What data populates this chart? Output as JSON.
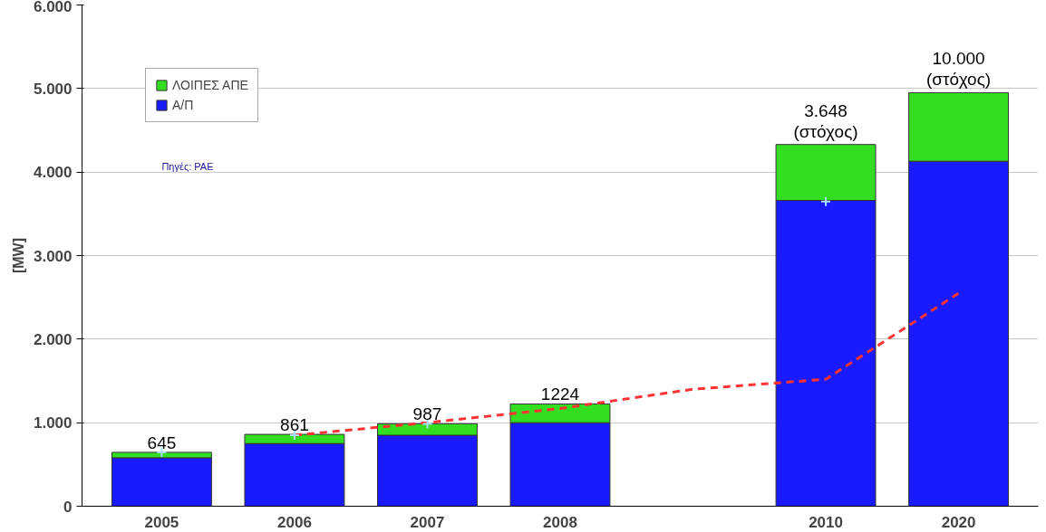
{
  "chart_data": {
    "type": "bar",
    "stacked": true,
    "ylabel": "[MW]",
    "categories": [
      "2005",
      "2006",
      "2007",
      "2008",
      null,
      "2010",
      "2020"
    ],
    "series": [
      {
        "name": "Α/Π",
        "color": "#1a1aff",
        "values": [
          580,
          750,
          850,
          1000,
          null,
          3660,
          4130
        ]
      },
      {
        "name": "ΛΟΙΠΕΣ ΑΠΕ",
        "color": "#33dd22",
        "values": [
          65,
          110,
          137,
          224,
          null,
          670,
          820
        ]
      },
      {
        "type": "line",
        "color": "#ff3333",
        "line_style": "dashed",
        "values": [
          null,
          850,
          1000,
          1170,
          1400,
          1520,
          2550
        ]
      },
      {
        "type": "scatter",
        "marker": "cross",
        "color": "#aaddff",
        "values": [
          645,
          850,
          985,
          null,
          null,
          3648,
          null
        ]
      }
    ],
    "totals": [
      "645",
      "861",
      "987",
      "1224",
      null,
      null,
      null
    ],
    "annotations": [
      {
        "text": "3.648\n(στόχος)",
        "x": "2010",
        "y": 4330
      },
      {
        "text": "10.000\n(στόχος)",
        "x": "2020",
        "y": 4950
      },
      "Πηγές: ΡΑΕ"
    ],
    "ylim": [
      0,
      6000
    ],
    "yticks": [
      {
        "value": 0,
        "label": "0"
      },
      {
        "value": 1000,
        "label": "1.000"
      },
      {
        "value": 2000,
        "label": "2.000"
      },
      {
        "value": 3000,
        "label": "3.000"
      },
      {
        "value": 4000,
        "label": "4.000"
      },
      {
        "value": 5000,
        "label": "5.000"
      },
      {
        "value": 6000,
        "label": "6.000"
      }
    ],
    "grid": "y",
    "legend": "top left"
  }
}
